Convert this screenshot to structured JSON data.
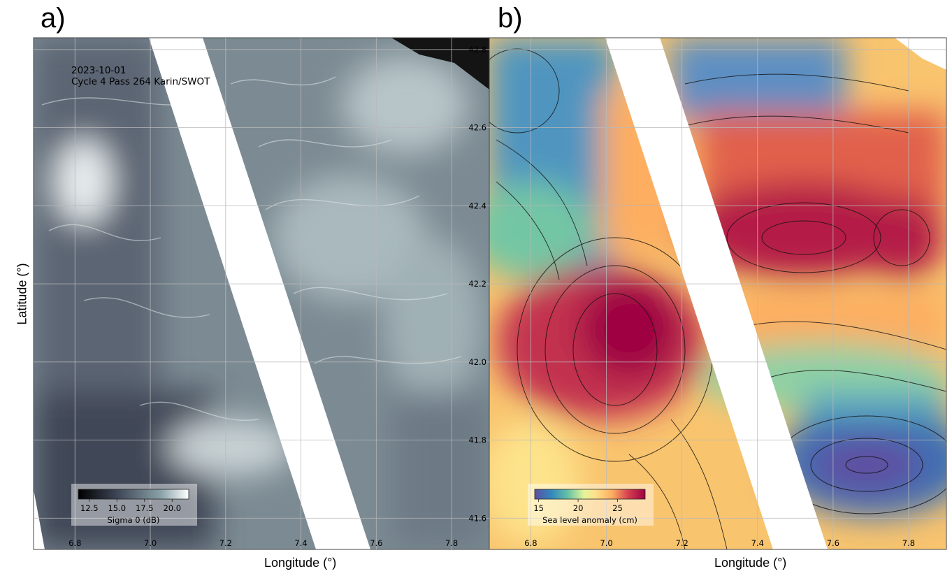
{
  "figure": {
    "panel_labels": [
      "a)",
      "b)"
    ],
    "xlabel": "Longitude (°)",
    "ylabel": "Latitude (°)"
  },
  "chart_data": [
    {
      "type": "heatmap",
      "panel": "a)",
      "title": "",
      "annotation_lines": [
        "2023-10-01",
        "Cycle 4 Pass 264 Karin/SWOT"
      ],
      "xlabel": "Longitude (°)",
      "ylabel": "Latitude (°)",
      "xlim": [
        6.69,
        7.9
      ],
      "ylim": [
        41.52,
        42.83
      ],
      "xticks": [
        6.8,
        7.0,
        7.2,
        7.4,
        7.6,
        7.8
      ],
      "xtick_labels": [
        "6.8",
        "7.0",
        "7.2",
        "7.4",
        "7.6",
        "7.8"
      ],
      "grid": true,
      "colormap": "bone",
      "colorbar": {
        "label": "Sigma 0 (dB)",
        "range": [
          11.5,
          21.5
        ],
        "ticks": [
          12.5,
          15.0,
          17.5,
          20.0
        ],
        "tick_labels": [
          "12.5",
          "15.0",
          "17.5",
          "20.0"
        ],
        "placement": "lower-left"
      },
      "swath_gap": "white diagonal no-data band between the two KaRIn swaths"
    },
    {
      "type": "heatmap",
      "panel": "b)",
      "title": "",
      "xlabel": "Longitude (°)",
      "ylabel": "",
      "xlim": [
        6.69,
        7.9
      ],
      "ylim": [
        41.52,
        42.83
      ],
      "xticks": [
        6.8,
        7.0,
        7.2,
        7.4,
        7.6,
        7.8
      ],
      "xtick_labels": [
        "6.8",
        "7.0",
        "7.2",
        "7.4",
        "7.6",
        "7.8"
      ],
      "yticks": [
        41.6,
        41.8,
        42.0,
        42.2,
        42.4,
        42.6,
        42.8
      ],
      "ytick_labels": [
        "41.6",
        "41.8",
        "42.0",
        "42.2",
        "42.4",
        "42.6",
        "42.8"
      ],
      "grid": true,
      "colormap": "Spectral_r",
      "overlay": "streamlines",
      "colorbar": {
        "label": "Sea level anomaly (cm)",
        "range": [
          14.5,
          28.5
        ],
        "ticks": [
          15,
          20,
          25
        ],
        "tick_labels": [
          "15",
          "20",
          "25"
        ],
        "placement": "lower-left"
      },
      "features": [
        {
          "kind": "high",
          "lon": 7.0,
          "lat": 42.0,
          "sla_cm": 28
        },
        {
          "kind": "high",
          "lon": 7.6,
          "lat": 42.28,
          "sla_cm": 28
        },
        {
          "kind": "low",
          "lon": 7.7,
          "lat": 41.7,
          "sla_cm": 15
        },
        {
          "kind": "low",
          "lon": 6.8,
          "lat": 42.5,
          "sla_cm": 17
        }
      ]
    }
  ],
  "colors": {
    "grid": "#b9b9b9",
    "swath_gap": "#ffffff",
    "sla_low": "#5e4fa2",
    "sla_high": "#9e0142"
  }
}
